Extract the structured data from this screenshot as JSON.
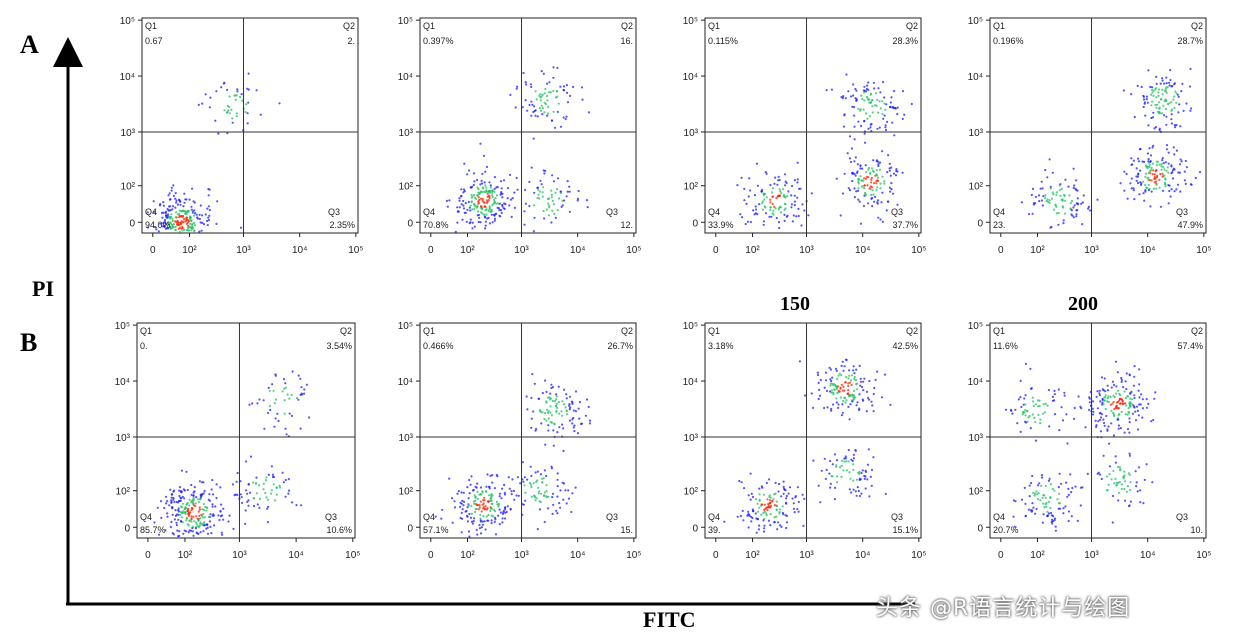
{
  "figure": {
    "panel_labels": [
      "A",
      "B"
    ],
    "y_axis_label": "PI",
    "x_axis_label": "FITC",
    "dose_labels": [
      "150",
      "200"
    ],
    "watermark": "头条 @R语言统计与绘图",
    "colors": {
      "q_line": "#333333",
      "density_low": "#1a1aff",
      "density_mid": "#20c060",
      "density_high": "#ff2000"
    }
  },
  "chart_data": [
    {
      "type": "scatter",
      "panel": "A",
      "index": 1,
      "xlabel": "",
      "ylabel": "",
      "x_ticks": [
        "0",
        "10²",
        "10³",
        "10⁴",
        "10⁵"
      ],
      "y_ticks": [
        "0",
        "10²",
        "10³",
        "10⁴",
        "10⁵"
      ],
      "quadrants": {
        "Q1": "0.67",
        "Q2": "2.",
        "Q3": "2.35%",
        "Q4": "94.0%"
      },
      "populations": [
        {
          "x": 80,
          "y": 0,
          "weight": 0.94
        },
        {
          "x": 600,
          "y": 3000,
          "weight": 0.03
        }
      ]
    },
    {
      "type": "scatter",
      "panel": "A",
      "index": 2,
      "xlabel": "",
      "ylabel": "",
      "x_ticks": [
        "0",
        "10²",
        "10³",
        "10⁴",
        "10⁵"
      ],
      "y_ticks": [
        "0",
        "10²",
        "10³",
        "10⁴",
        "10⁵"
      ],
      "quadrants": {
        "Q1": "0.397%",
        "Q2": "16.",
        "Q3": "12.",
        "Q4": "70.8%"
      },
      "populations": [
        {
          "x": 200,
          "y": 60,
          "weight": 0.7
        },
        {
          "x": 3000,
          "y": 4000,
          "weight": 0.16
        },
        {
          "x": 3000,
          "y": 60,
          "weight": 0.12
        }
      ]
    },
    {
      "type": "scatter",
      "panel": "A",
      "index": 3,
      "xlabel": "",
      "ylabel": "",
      "x_ticks": [
        "0",
        "10²",
        "10³",
        "10⁴",
        "10⁵"
      ],
      "y_ticks": [
        "0",
        "10²",
        "10³",
        "10⁴",
        "10⁵"
      ],
      "quadrants": {
        "Q1": "0.115%",
        "Q2": "28.3%",
        "Q3": "37.7%",
        "Q4": "33.9%"
      },
      "populations": [
        {
          "x": 250,
          "y": 60,
          "weight": 0.34
        },
        {
          "x": 15000,
          "y": 120,
          "weight": 0.38
        },
        {
          "x": 15000,
          "y": 3000,
          "weight": 0.28
        }
      ]
    },
    {
      "type": "scatter",
      "panel": "A",
      "index": 4,
      "xlabel": "",
      "ylabel": "",
      "x_ticks": [
        "0",
        "10²",
        "10³",
        "10⁴",
        "10⁵"
      ],
      "y_ticks": [
        "0",
        "10²",
        "10³",
        "10⁴",
        "10⁵"
      ],
      "quadrants": {
        "Q1": "0.196%",
        "Q2": "28.7%",
        "Q3": "47.9%",
        "Q4": "23."
      },
      "populations": [
        {
          "x": 250,
          "y": 60,
          "weight": 0.23
        },
        {
          "x": 15000,
          "y": 150,
          "weight": 0.48
        },
        {
          "x": 20000,
          "y": 4000,
          "weight": 0.29
        }
      ]
    },
    {
      "type": "scatter",
      "panel": "B",
      "index": 1,
      "xlabel": "",
      "ylabel": "",
      "x_ticks": [
        "0",
        "10²",
        "10³",
        "10⁴",
        "10⁵"
      ],
      "y_ticks": [
        "0",
        "10²",
        "10³",
        "10⁴",
        "10⁵"
      ],
      "quadrants": {
        "Q1": "0.",
        "Q2": "3.54%",
        "Q3": "10.6%",
        "Q4": "85.7%"
      },
      "populations": [
        {
          "x": 150,
          "y": 40,
          "weight": 0.86
        },
        {
          "x": 3000,
          "y": 100,
          "weight": 0.1
        },
        {
          "x": 6000,
          "y": 5000,
          "weight": 0.04
        }
      ]
    },
    {
      "type": "scatter",
      "panel": "B",
      "index": 2,
      "xlabel": "",
      "ylabel": "",
      "x_ticks": [
        "0",
        "10²",
        "10³",
        "10⁴",
        "10⁵"
      ],
      "y_ticks": [
        "0",
        "10²",
        "10³",
        "10⁴",
        "10⁵"
      ],
      "quadrants": {
        "Q1": "0.466%",
        "Q2": "26.7%",
        "Q3": "15.",
        "Q4": "57.1%"
      },
      "populations": [
        {
          "x": 200,
          "y": 60,
          "weight": 0.57
        },
        {
          "x": 4000,
          "y": 3000,
          "weight": 0.27
        },
        {
          "x": 2000,
          "y": 100,
          "weight": 0.16
        }
      ]
    },
    {
      "type": "scatter",
      "panel": "B",
      "index": 3,
      "xlabel": "",
      "ylabel": "",
      "x_ticks": [
        "0",
        "10²",
        "10³",
        "10⁴",
        "10⁵"
      ],
      "y_ticks": [
        "0",
        "10²",
        "10³",
        "10⁴",
        "10⁵"
      ],
      "quadrants": {
        "Q1": "3.18%",
        "Q2": "42.5%",
        "Q3": "15.1%",
        "Q4": "39."
      },
      "populations": [
        {
          "x": 200,
          "y": 60,
          "weight": 0.39
        },
        {
          "x": 5000,
          "y": 8000,
          "weight": 0.43
        },
        {
          "x": 5000,
          "y": 200,
          "weight": 0.15
        }
      ]
    },
    {
      "type": "scatter",
      "panel": "B",
      "index": 4,
      "xlabel": "",
      "ylabel": "",
      "x_ticks": [
        "0",
        "10²",
        "10³",
        "10⁴",
        "10⁵"
      ],
      "y_ticks": [
        "0",
        "10²",
        "10³",
        "10⁴",
        "10⁵"
      ],
      "quadrants": {
        "Q1": "11.6%",
        "Q2": "57.4%",
        "Q3": "10.",
        "Q4": "20.7%"
      },
      "populations": [
        {
          "x": 150,
          "y": 80,
          "weight": 0.21
        },
        {
          "x": 3000,
          "y": 4000,
          "weight": 0.57
        },
        {
          "x": 3000,
          "y": 150,
          "weight": 0.1
        },
        {
          "x": 100,
          "y": 3000,
          "weight": 0.12
        }
      ]
    }
  ]
}
